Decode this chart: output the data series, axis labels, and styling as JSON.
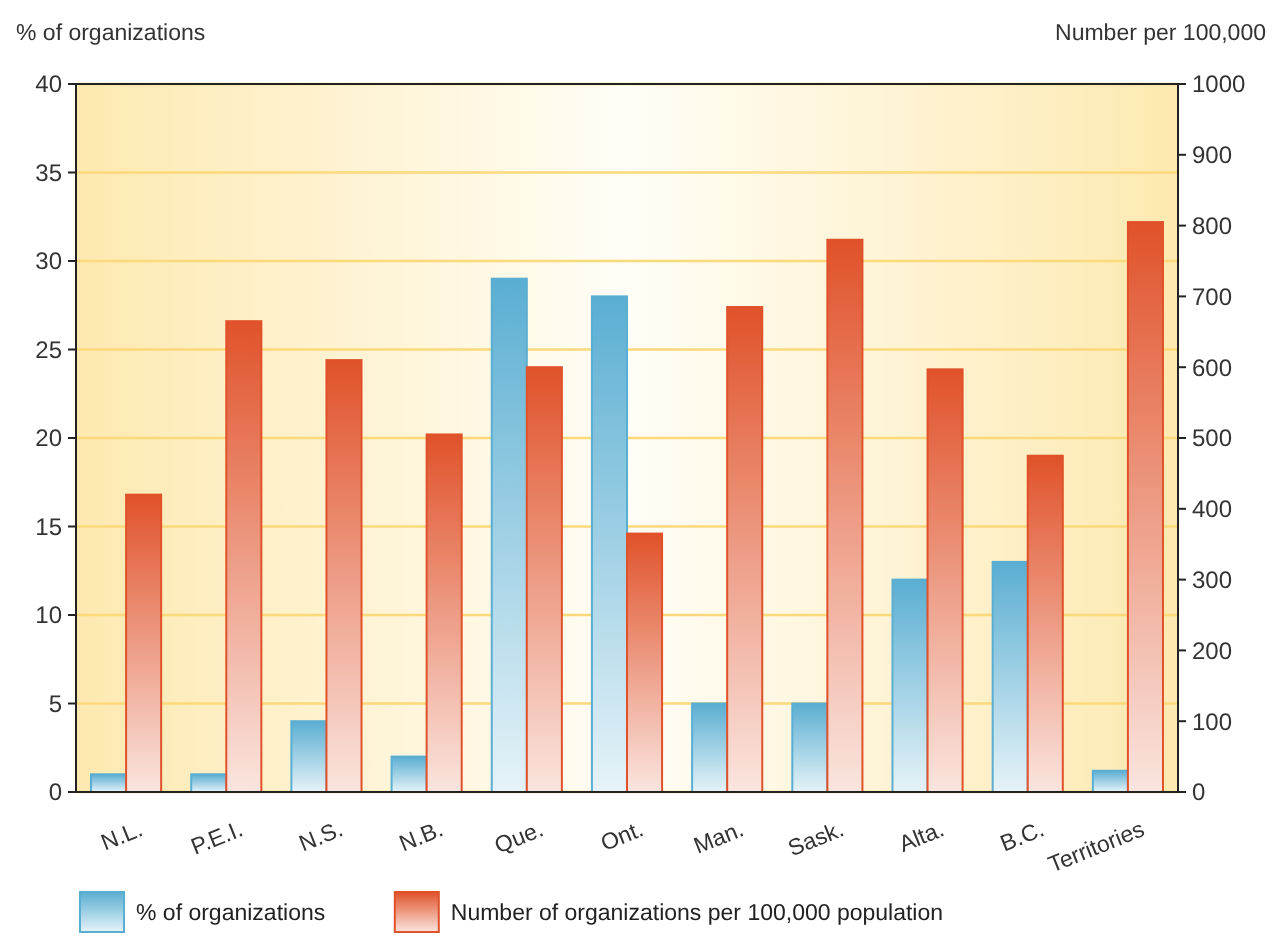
{
  "chart_data": {
    "type": "bar",
    "ylabel": "% of organizations",
    "y2label": "Number per 100,000",
    "categories": [
      "N.L.",
      "P.E.I.",
      "N.S.",
      "N.B.",
      "Que.",
      "Ont.",
      "Man.",
      "Sask.",
      "Alta.",
      "B.C.",
      "Territories"
    ],
    "series": [
      {
        "name": "% of organizations",
        "color": "#5aaed2",
        "values": [
          1,
          1,
          4,
          2,
          29,
          28,
          5,
          5,
          12,
          13,
          1.2
        ]
      },
      {
        "name": "Number of organizations per 100,000 population",
        "color": "#e0522a",
        "axis": "y2",
        "values": [
          420,
          665,
          610,
          505,
          600,
          365,
          685,
          780,
          597,
          475,
          805
        ]
      }
    ],
    "ylim": [
      0,
      40
    ],
    "yticks": [
      0,
      5,
      10,
      15,
      20,
      25,
      30,
      35,
      40
    ],
    "y2lim": [
      0,
      1000
    ],
    "y2ticks": [
      0,
      100,
      200,
      300,
      400,
      500,
      600,
      700,
      800,
      900,
      1000
    ],
    "grid": "y",
    "legend": "bottom"
  }
}
